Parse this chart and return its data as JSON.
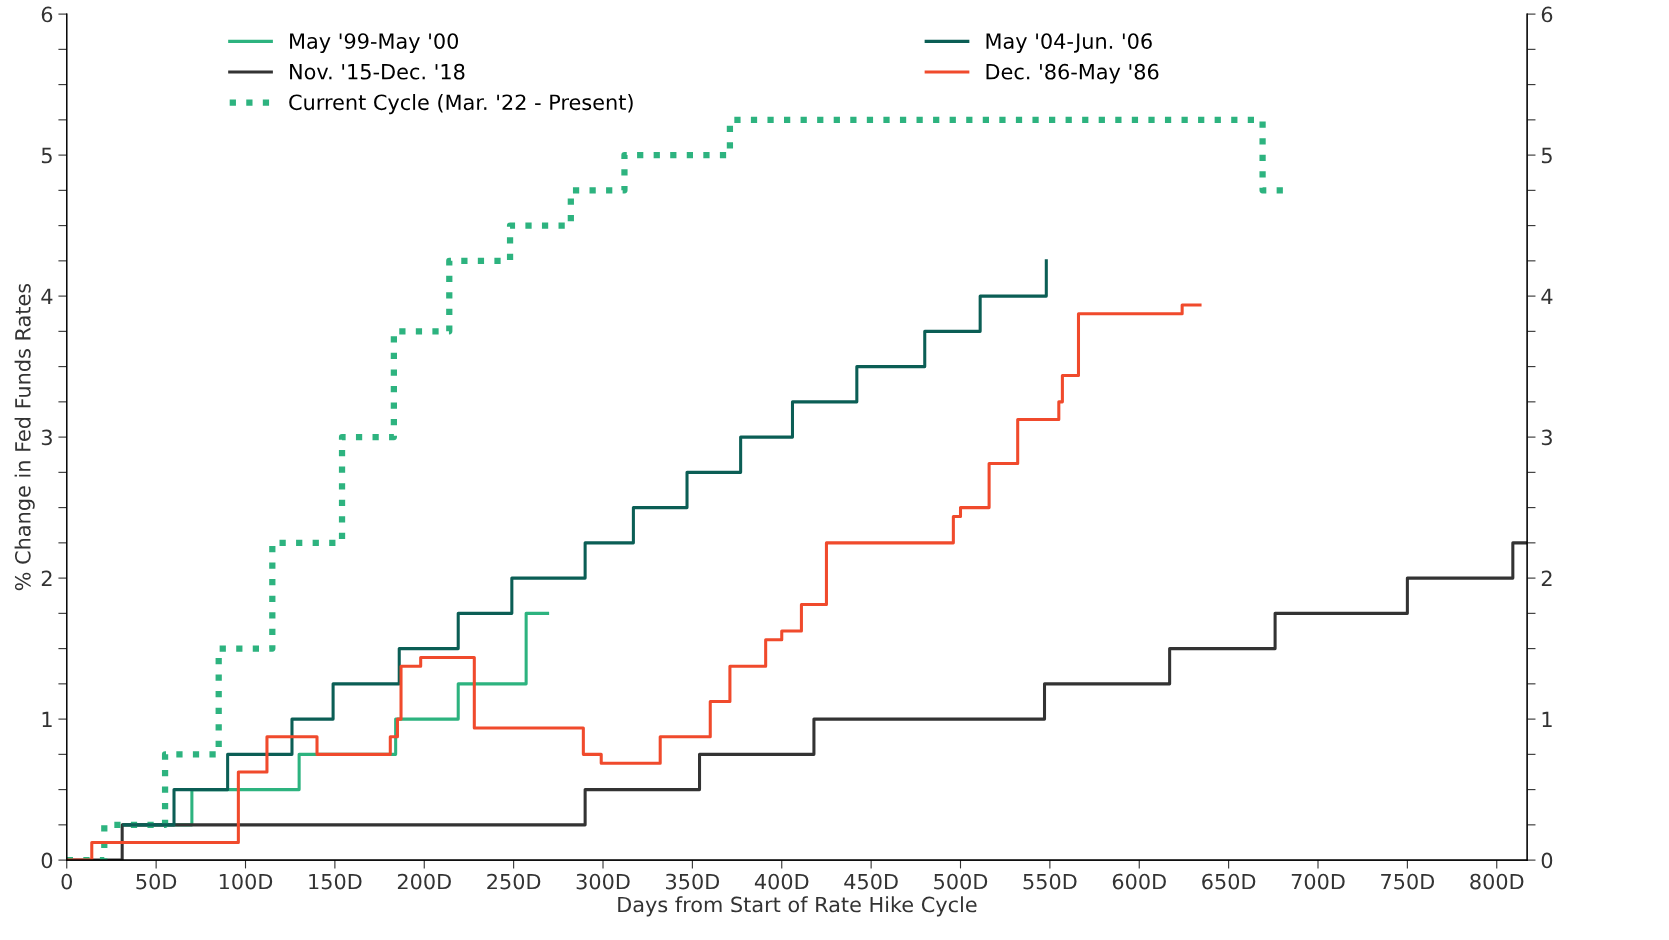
{
  "chart_data": {
    "type": "step",
    "xlabel": "Days from Start of Rate Hike Cycle",
    "ylabel": "% Change in Fed Funds Rates",
    "xlim": [
      0,
      817
    ],
    "ylim": [
      0,
      6
    ],
    "y2lim": [
      0,
      6
    ],
    "xticks": [
      0,
      {
        "value": 50,
        "label": "50D"
      },
      {
        "value": 100,
        "label": "100D"
      },
      {
        "value": 150,
        "label": "150D"
      },
      {
        "value": 200,
        "label": "200D"
      },
      {
        "value": 250,
        "label": "250D"
      },
      {
        "value": 300,
        "label": "300D"
      },
      {
        "value": 350,
        "label": "350D"
      },
      {
        "value": 400,
        "label": "400D"
      },
      {
        "value": 450,
        "label": "450D"
      },
      {
        "value": 500,
        "label": "500D"
      },
      {
        "value": 550,
        "label": "550D"
      },
      {
        "value": 600,
        "label": "600D"
      },
      {
        "value": 650,
        "label": "650D"
      },
      {
        "value": 700,
        "label": "700D"
      },
      {
        "value": 750,
        "label": "750D"
      },
      {
        "value": 800,
        "label": "800D"
      }
    ],
    "yticks": [
      0,
      {
        "value": 0.25,
        "label": null
      },
      {
        "value": 0.5,
        "label": null
      },
      {
        "value": 0.75,
        "label": null
      },
      1,
      {
        "value": 1.25,
        "label": null
      },
      {
        "value": 1.5,
        "label": null
      },
      {
        "value": 1.75,
        "label": null
      },
      2,
      {
        "value": 2.25,
        "label": null
      },
      {
        "value": 2.5,
        "label": null
      },
      {
        "value": 2.75,
        "label": null
      },
      3,
      {
        "value": 3.25,
        "label": null
      },
      {
        "value": 3.5,
        "label": null
      },
      {
        "value": 3.75,
        "label": null
      },
      4,
      {
        "value": 4.25,
        "label": null
      },
      {
        "value": 4.5,
        "label": null
      },
      {
        "value": 4.75,
        "label": null
      },
      5,
      {
        "value": 5.25,
        "label": null
      },
      {
        "value": 5.5,
        "label": null
      },
      {
        "value": 5.75,
        "label": null
      },
      6
    ],
    "y2ticks": [
      0,
      {
        "value": 0.25,
        "label": null
      },
      {
        "value": 0.5,
        "label": null
      },
      {
        "value": 0.75,
        "label": null
      },
      1,
      {
        "value": 1.25,
        "label": null
      },
      {
        "value": 1.5,
        "label": null
      },
      {
        "value": 1.75,
        "label": null
      },
      2,
      {
        "value": 2.25,
        "label": null
      },
      {
        "value": 2.5,
        "label": null
      },
      {
        "value": 2.75,
        "label": null
      },
      3,
      {
        "value": 3.25,
        "label": null
      },
      {
        "value": 3.5,
        "label": null
      },
      {
        "value": 3.75,
        "label": null
      },
      4,
      {
        "value": 4.25,
        "label": null
      },
      {
        "value": 4.5,
        "label": null
      },
      {
        "value": 4.75,
        "label": null
      },
      5,
      {
        "value": 5.25,
        "label": null
      },
      {
        "value": 5.5,
        "label": null
      },
      {
        "value": 5.75,
        "label": null
      },
      6
    ],
    "grid": false,
    "legend": "top",
    "marker": "none",
    "series": [
      {
        "name": "May '99-May '00",
        "color": "#2db37f",
        "line_style": "solid",
        "x": [
          32,
          70,
          130,
          184,
          219,
          257,
          269
        ],
        "values": [
          0.25,
          0.5,
          0.75,
          1.0,
          1.25,
          1.75,
          1.75
        ]
      },
      {
        "name": "Nov. '15-Dec. '18",
        "color": "#333333",
        "line_style": "solid",
        "x": [
          0,
          31,
          290,
          354,
          418,
          547,
          617,
          676,
          750,
          809,
          817
        ],
        "values": [
          0,
          0.25,
          0.5,
          0.75,
          1.0,
          1.25,
          1.5,
          1.75,
          2.0,
          2.25,
          2.25
        ]
      },
      {
        "name": "Current Cycle (Mar. '22 - Present)",
        "color": "#2db37f",
        "line_style": "dotted",
        "x": [
          0,
          21,
          55,
          85,
          115,
          154,
          183,
          214,
          248,
          282,
          312,
          371,
          669,
          683
        ],
        "values": [
          0,
          0.25,
          0.75,
          1.5,
          2.25,
          3.0,
          3.75,
          4.25,
          4.5,
          4.75,
          5.0,
          5.25,
          4.75,
          4.75
        ]
      },
      {
        "name": "May '04-Jun. '06",
        "color": "#0b5e55",
        "line_style": "solid",
        "x": [
          32,
          60,
          90,
          126,
          149,
          186,
          219,
          249,
          290,
          317,
          347,
          377,
          406,
          442,
          480,
          511,
          548
        ],
        "values": [
          0.25,
          0.5,
          0.75,
          1.0,
          1.25,
          1.5,
          1.75,
          2.0,
          2.25,
          2.5,
          2.75,
          3.0,
          3.25,
          3.5,
          3.75,
          4.0,
          4.25
        ]
      },
      {
        "name": "Dec. '86-May '86",
        "color": "#f04a2c",
        "line_style": "solid",
        "x": [
          0,
          14,
          96,
          112,
          140,
          181,
          185,
          187,
          198,
          228,
          289,
          299,
          332,
          360,
          371,
          391,
          400,
          411,
          425,
          496,
          500,
          516,
          532,
          555,
          557,
          566,
          624,
          634
        ],
        "values": [
          0,
          0.125,
          0.625,
          0.875,
          0.75,
          0.875,
          1.0,
          1.375,
          1.4375,
          0.9375,
          0.75,
          0.6875,
          0.875,
          1.125,
          1.375,
          1.5625,
          1.625,
          1.8125,
          2.25,
          2.4375,
          2.5,
          2.8125,
          3.125,
          3.25,
          3.4375,
          3.875,
          3.9375,
          3.9375
        ]
      }
    ]
  }
}
